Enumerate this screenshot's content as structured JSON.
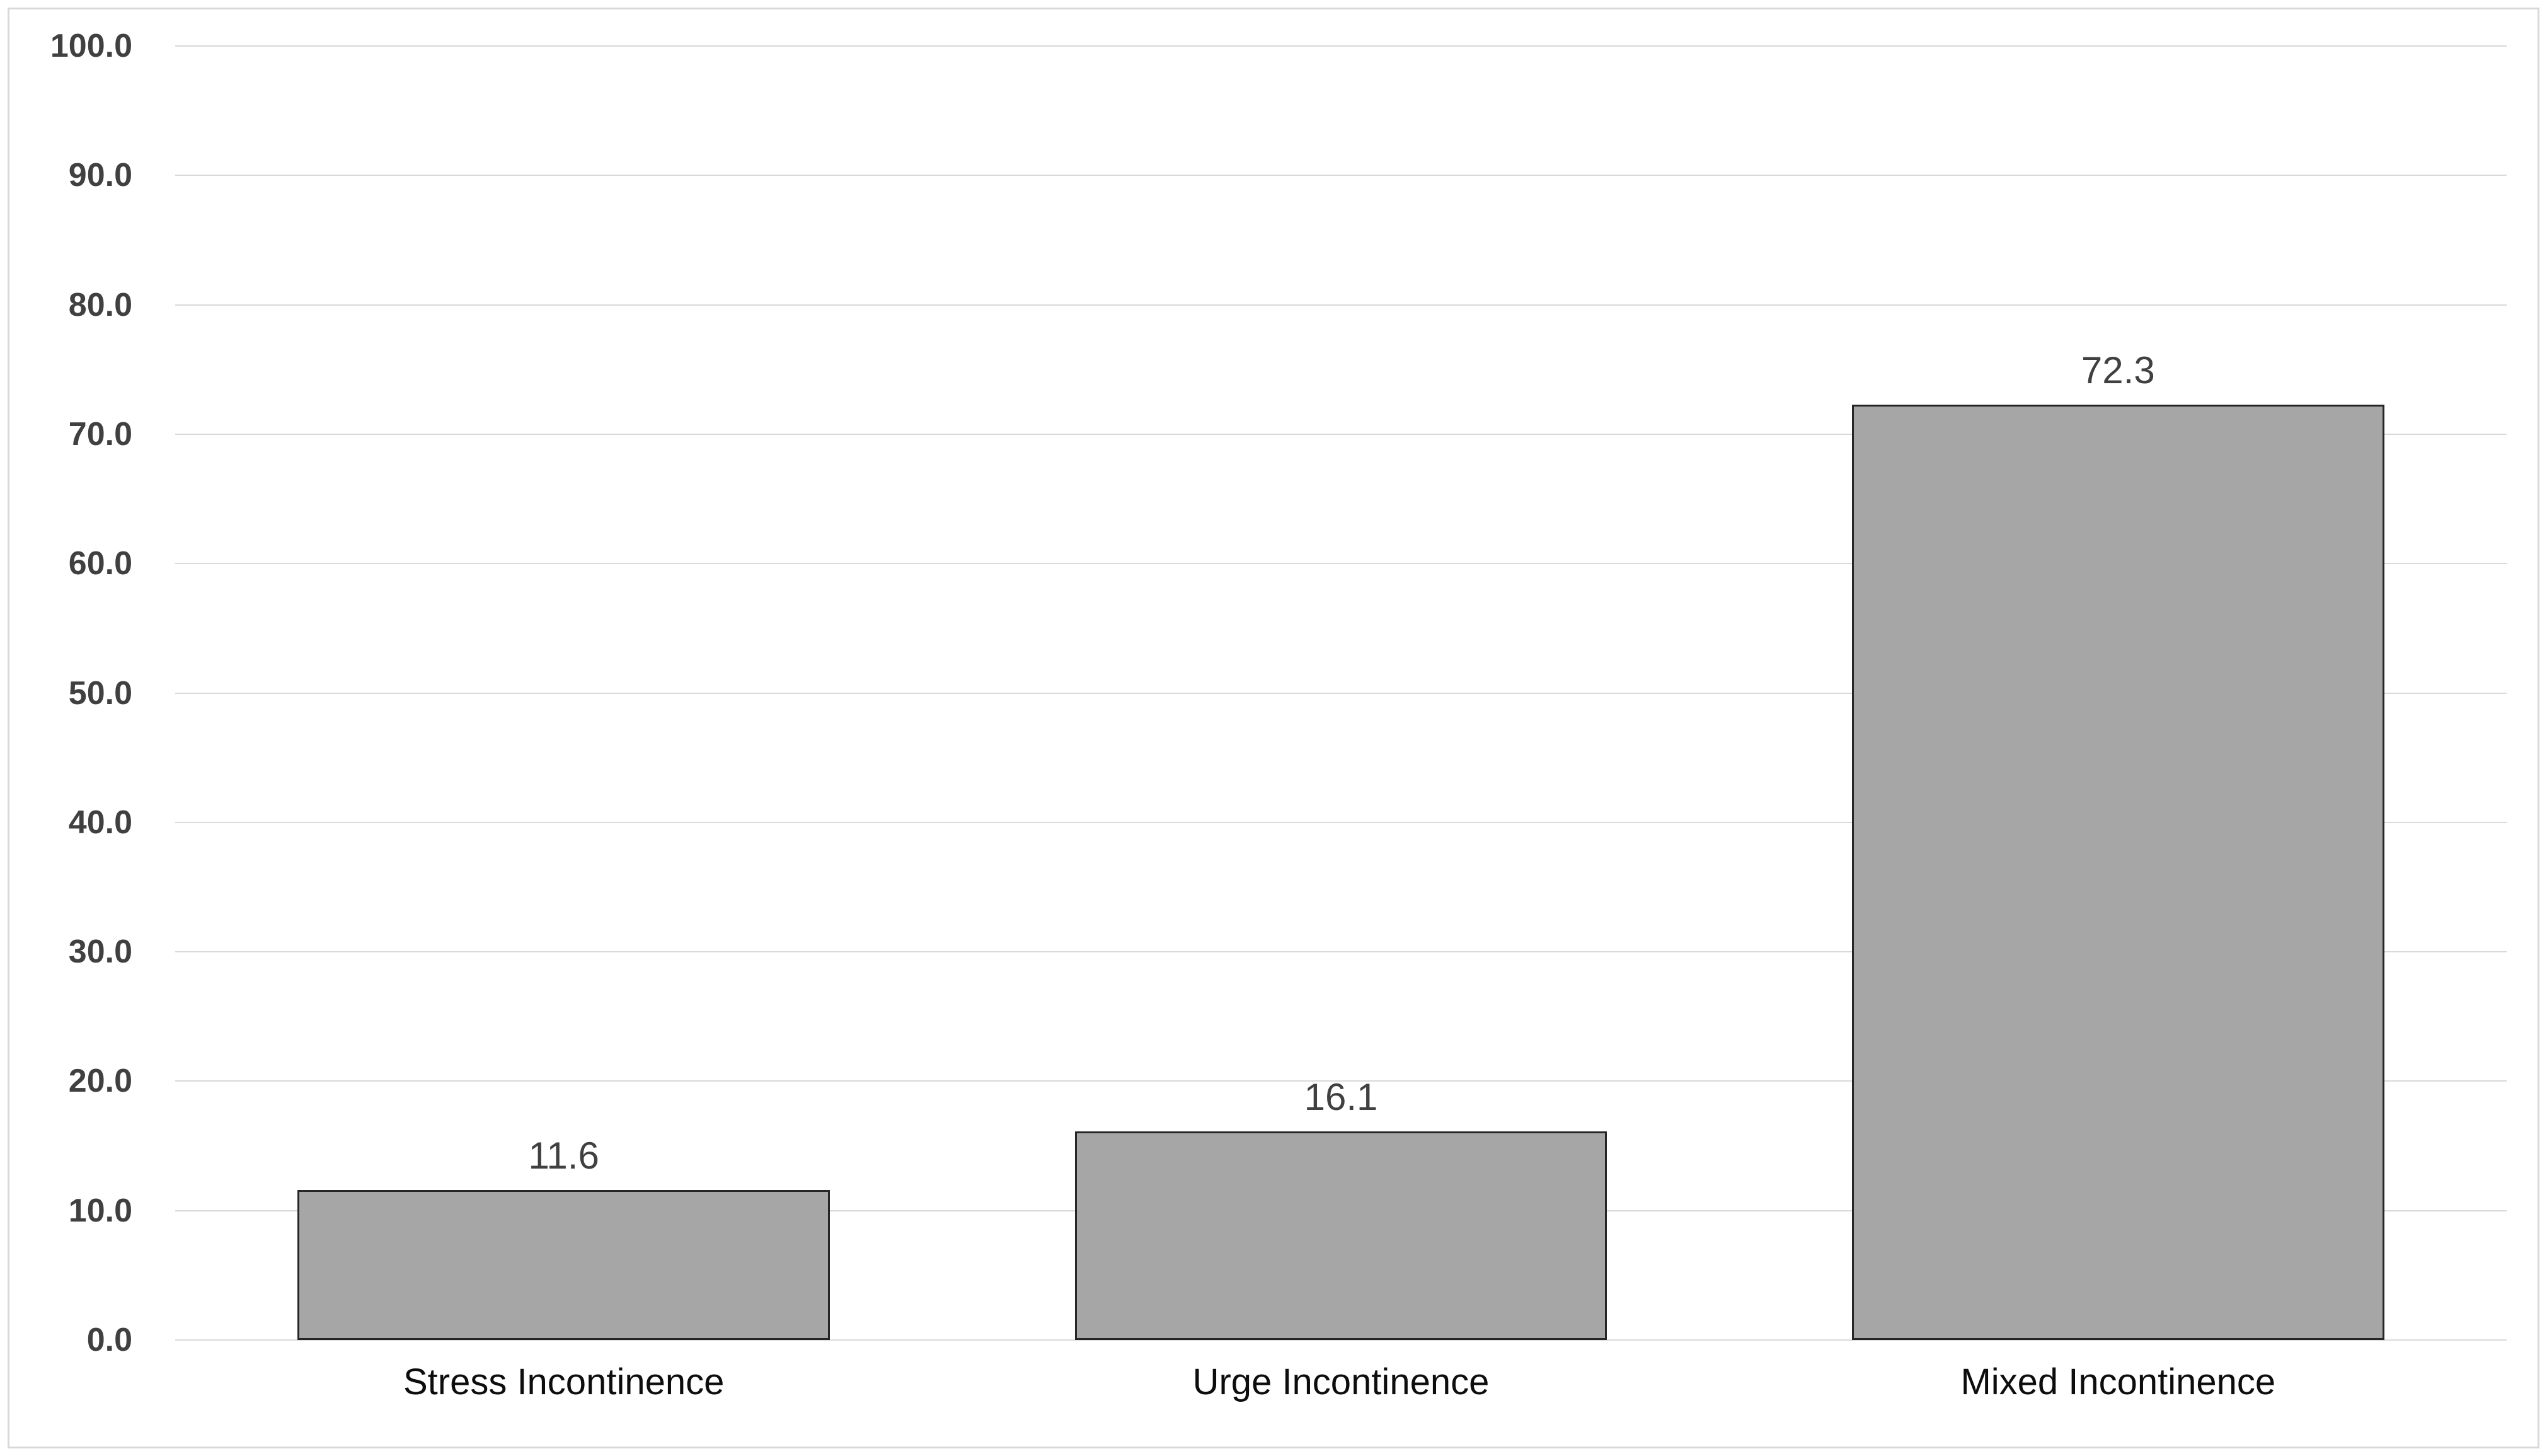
{
  "chart_data": {
    "type": "bar",
    "title": "",
    "xlabel": "",
    "ylabel": "",
    "categories": [
      "Stress Incontinence",
      "Urge Incontinence",
      "Mixed Incontinence"
    ],
    "values": [
      11.6,
      16.1,
      72.3
    ],
    "value_labels": [
      "11.6",
      "16.1",
      "72.3"
    ],
    "ylim": [
      0,
      100
    ],
    "ytick_step": 10,
    "ytick_labels": [
      "0.0",
      "10.0",
      "20.0",
      "30.0",
      "40.0",
      "50.0",
      "60.0",
      "70.0",
      "80.0",
      "90.0",
      "100.0"
    ],
    "grid": "horizontal",
    "legend": "none",
    "colors": {
      "bar_fill": "#a6a6a6",
      "bar_border": "#262626",
      "gridline": "#d9d9d9",
      "frame_border": "#d9d9d9",
      "ytick_text": "#404040",
      "value_text": "#404040",
      "category_text": "#0d0d0d",
      "background": "#ffffff"
    }
  }
}
